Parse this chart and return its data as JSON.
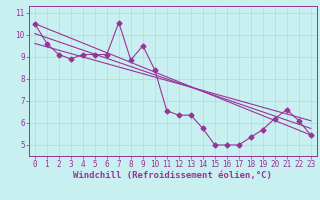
{
  "xlabel": "Windchill (Refroidissement éolien,°C)",
  "background_color": "#c8f0f0",
  "line_color": "#993399",
  "grid_color": "#aadddd",
  "xlim": [
    -0.5,
    23.5
  ],
  "ylim": [
    4.5,
    11.3
  ],
  "yticks": [
    5,
    6,
    7,
    8,
    9,
    10,
    11
  ],
  "xticks": [
    0,
    1,
    2,
    3,
    4,
    5,
    6,
    7,
    8,
    9,
    10,
    11,
    12,
    13,
    14,
    15,
    16,
    17,
    18,
    19,
    20,
    21,
    22,
    23
  ],
  "data_x": [
    0,
    1,
    2,
    3,
    4,
    5,
    6,
    7,
    8,
    9,
    10,
    11,
    12,
    13,
    14,
    15,
    16,
    17,
    18,
    19,
    20,
    21,
    22,
    23
  ],
  "data_y": [
    10.5,
    9.6,
    9.1,
    8.9,
    9.1,
    9.1,
    9.1,
    10.55,
    8.85,
    9.5,
    8.4,
    6.55,
    6.35,
    6.35,
    5.75,
    5.0,
    5.0,
    5.0,
    5.35,
    5.7,
    6.2,
    6.6,
    6.1,
    5.45
  ],
  "trend1_x": [
    0,
    23
  ],
  "trend1_y": [
    10.5,
    5.45
  ],
  "trend2_x": [
    0,
    23
  ],
  "trend2_y": [
    10.05,
    5.75
  ],
  "trend3_x": [
    0,
    23
  ],
  "trend3_y": [
    9.6,
    6.1
  ],
  "marker": "D",
  "markersize": 2.5,
  "linewidth": 0.8,
  "xlabel_fontsize": 6.5,
  "tick_fontsize": 5.5
}
